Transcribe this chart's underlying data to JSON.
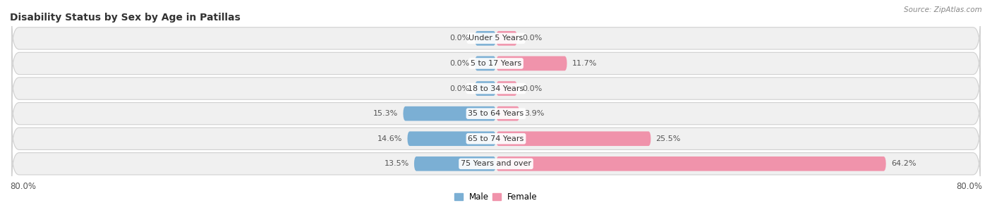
{
  "title": "Disability Status by Sex by Age in Patillas",
  "source": "Source: ZipAtlas.com",
  "categories": [
    "Under 5 Years",
    "5 to 17 Years",
    "18 to 34 Years",
    "35 to 64 Years",
    "65 to 74 Years",
    "75 Years and over"
  ],
  "male_values": [
    0.0,
    0.0,
    0.0,
    15.3,
    14.6,
    13.5
  ],
  "female_values": [
    0.0,
    11.7,
    0.0,
    3.9,
    25.5,
    64.2
  ],
  "male_color": "#7bafd4",
  "female_color": "#f093ab",
  "row_bg_color": "#f0f0f0",
  "axis_limit": 80.0,
  "stub_size": 3.5,
  "bar_height": 0.58,
  "label_fontsize": 8.5,
  "title_fontsize": 10
}
